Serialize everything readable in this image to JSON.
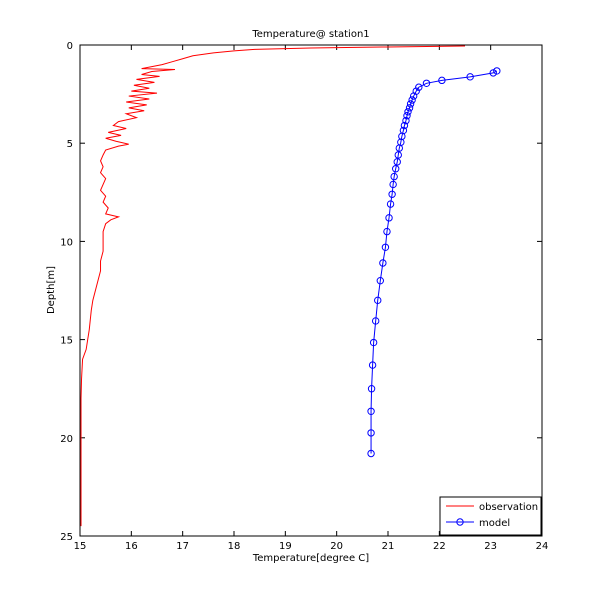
{
  "chart_data": {
    "type": "line",
    "title": "Temperature@ station1",
    "xlabel": "Temperature[degree C]",
    "ylabel": "Depth[m]",
    "xlim": [
      15,
      24
    ],
    "ylim": [
      0,
      25
    ],
    "y_reversed": true,
    "xticks": [
      15,
      16,
      17,
      18,
      19,
      20,
      21,
      22,
      23,
      24
    ],
    "yticks": [
      0,
      5,
      10,
      15,
      20,
      25
    ],
    "xtick_labels": [
      "15",
      "16",
      "17",
      "18",
      "19",
      "20",
      "21",
      "22",
      "23",
      "24"
    ],
    "ytick_labels": [
      "0",
      "5",
      "10",
      "15",
      "20",
      "25"
    ],
    "grid": false,
    "legend_position": "bottom-right",
    "series": [
      {
        "name": "observation",
        "color": "#ff0000",
        "marker": "none",
        "points": [
          [
            22.5,
            0.05
          ],
          [
            21.0,
            0.1
          ],
          [
            19.5,
            0.15
          ],
          [
            18.4,
            0.22
          ],
          [
            18.0,
            0.3
          ],
          [
            17.6,
            0.4
          ],
          [
            17.2,
            0.55
          ],
          [
            17.0,
            0.7
          ],
          [
            16.8,
            0.85
          ],
          [
            16.6,
            1.0
          ],
          [
            16.4,
            1.1
          ],
          [
            16.2,
            1.2
          ],
          [
            16.85,
            1.25
          ],
          [
            16.4,
            1.35
          ],
          [
            16.2,
            1.5
          ],
          [
            16.55,
            1.6
          ],
          [
            16.1,
            1.75
          ],
          [
            16.45,
            1.9
          ],
          [
            16.05,
            2.05
          ],
          [
            16.35,
            2.2
          ],
          [
            16.0,
            2.35
          ],
          [
            16.5,
            2.45
          ],
          [
            15.95,
            2.6
          ],
          [
            16.35,
            2.75
          ],
          [
            15.9,
            2.9
          ],
          [
            16.3,
            3.05
          ],
          [
            15.95,
            3.2
          ],
          [
            16.25,
            3.35
          ],
          [
            15.9,
            3.5
          ],
          [
            16.1,
            3.7
          ],
          [
            15.75,
            3.9
          ],
          [
            15.65,
            4.1
          ],
          [
            15.9,
            4.25
          ],
          [
            15.55,
            4.45
          ],
          [
            15.8,
            4.6
          ],
          [
            15.5,
            4.75
          ],
          [
            15.7,
            4.9
          ],
          [
            15.95,
            5.05
          ],
          [
            15.75,
            5.15
          ],
          [
            15.5,
            5.35
          ],
          [
            15.45,
            5.6
          ],
          [
            15.4,
            5.9
          ],
          [
            15.45,
            6.2
          ],
          [
            15.4,
            6.5
          ],
          [
            15.5,
            6.8
          ],
          [
            15.45,
            7.1
          ],
          [
            15.4,
            7.4
          ],
          [
            15.5,
            7.7
          ],
          [
            15.45,
            8.0
          ],
          [
            15.55,
            8.3
          ],
          [
            15.5,
            8.6
          ],
          [
            15.75,
            8.75
          ],
          [
            15.6,
            8.9
          ],
          [
            15.5,
            9.1
          ],
          [
            15.45,
            9.5
          ],
          [
            15.45,
            10.0
          ],
          [
            15.45,
            10.5
          ],
          [
            15.4,
            11.0
          ],
          [
            15.4,
            11.5
          ],
          [
            15.35,
            12.0
          ],
          [
            15.3,
            12.5
          ],
          [
            15.25,
            13.0
          ],
          [
            15.22,
            13.5
          ],
          [
            15.2,
            14.0
          ],
          [
            15.18,
            14.5
          ],
          [
            15.15,
            15.0
          ],
          [
            15.12,
            15.5
          ],
          [
            15.05,
            16.0
          ],
          [
            15.03,
            17.0
          ],
          [
            15.02,
            18.0
          ],
          [
            15.02,
            19.0
          ],
          [
            15.02,
            20.0
          ],
          [
            15.02,
            21.0
          ],
          [
            15.02,
            22.0
          ],
          [
            15.02,
            23.0
          ],
          [
            15.02,
            24.0
          ],
          [
            15.02,
            24.5
          ]
        ]
      },
      {
        "name": "model",
        "color": "#0000ff",
        "marker": "circle",
        "points": [
          [
            23.12,
            1.32
          ],
          [
            23.05,
            1.42
          ],
          [
            22.6,
            1.62
          ],
          [
            22.05,
            1.8
          ],
          [
            21.75,
            1.95
          ],
          [
            21.6,
            2.15
          ],
          [
            21.55,
            2.35
          ],
          [
            21.5,
            2.6
          ],
          [
            21.47,
            2.8
          ],
          [
            21.44,
            3.0
          ],
          [
            21.42,
            3.2
          ],
          [
            21.39,
            3.4
          ],
          [
            21.37,
            3.6
          ],
          [
            21.35,
            3.85
          ],
          [
            21.32,
            4.1
          ],
          [
            21.3,
            4.35
          ],
          [
            21.27,
            4.65
          ],
          [
            21.25,
            4.95
          ],
          [
            21.22,
            5.25
          ],
          [
            21.2,
            5.6
          ],
          [
            21.18,
            5.95
          ],
          [
            21.15,
            6.3
          ],
          [
            21.12,
            6.7
          ],
          [
            21.1,
            7.1
          ],
          [
            21.08,
            7.6
          ],
          [
            21.05,
            8.1
          ],
          [
            21.02,
            8.8
          ],
          [
            20.98,
            9.5
          ],
          [
            20.95,
            10.3
          ],
          [
            20.9,
            11.1
          ],
          [
            20.85,
            12.0
          ],
          [
            20.8,
            13.0
          ],
          [
            20.76,
            14.05
          ],
          [
            20.72,
            15.15
          ],
          [
            20.7,
            16.3
          ],
          [
            20.68,
            17.5
          ],
          [
            20.67,
            18.65
          ],
          [
            20.67,
            19.75
          ],
          [
            20.67,
            20.8
          ]
        ]
      }
    ]
  }
}
